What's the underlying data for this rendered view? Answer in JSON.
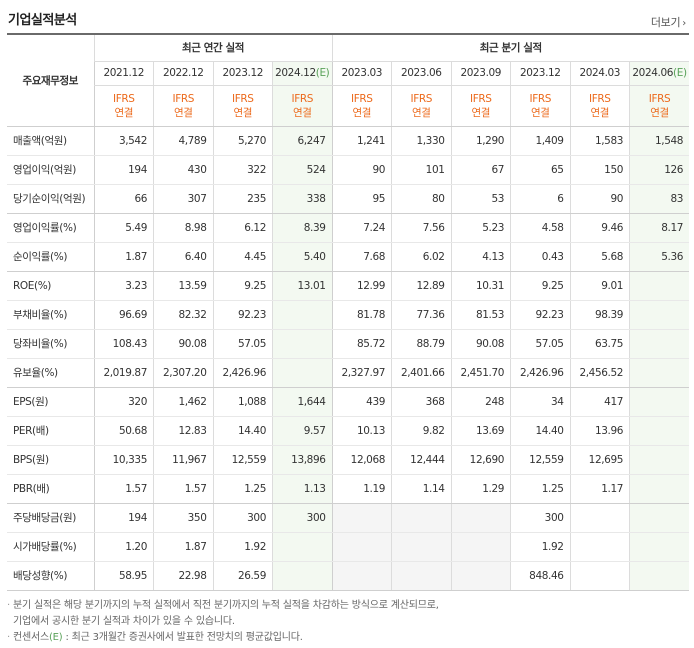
{
  "title": "기업실적분석",
  "more_label": "더보기",
  "header": {
    "row_label": "주요재무정보",
    "annual_group": "최근 연간 실적",
    "quarter_group": "최근 분기 실적",
    "annual_periods": [
      "2021.12",
      "2022.12",
      "2023.12",
      "2024.12"
    ],
    "annual_est_suffix": "(E)",
    "quarter_periods": [
      "2023.03",
      "2023.06",
      "2023.09",
      "2023.12",
      "2024.03",
      "2024.06"
    ],
    "quarter_est_suffix": "(E)",
    "basis_top": "IFRS",
    "basis_bottom": "연결"
  },
  "rows": [
    {
      "label": "매출액(억원)",
      "values": [
        "3,542",
        "4,789",
        "5,270",
        "6,247",
        "1,241",
        "1,330",
        "1,290",
        "1,409",
        "1,583",
        "1,548"
      ]
    },
    {
      "label": "영업이익(억원)",
      "values": [
        "194",
        "430",
        "322",
        "524",
        "90",
        "101",
        "67",
        "65",
        "150",
        "126"
      ]
    },
    {
      "label": "당기순이익(억원)",
      "values": [
        "66",
        "307",
        "235",
        "338",
        "95",
        "80",
        "53",
        "6",
        "90",
        "83"
      ]
    },
    {
      "label": "영업이익률(%)",
      "values": [
        "5.49",
        "8.98",
        "6.12",
        "8.39",
        "7.24",
        "7.56",
        "5.23",
        "4.58",
        "9.46",
        "8.17"
      ]
    },
    {
      "label": "순이익률(%)",
      "values": [
        "1.87",
        "6.40",
        "4.45",
        "5.40",
        "7.68",
        "6.02",
        "4.13",
        "0.43",
        "5.68",
        "5.36"
      ]
    },
    {
      "label": "ROE(%)",
      "values": [
        "3.23",
        "13.59",
        "9.25",
        "13.01",
        "12.99",
        "12.89",
        "10.31",
        "9.25",
        "9.01",
        ""
      ]
    },
    {
      "label": "부채비율(%)",
      "values": [
        "96.69",
        "82.32",
        "92.23",
        "",
        "81.78",
        "77.36",
        "81.53",
        "92.23",
        "98.39",
        ""
      ]
    },
    {
      "label": "당좌비율(%)",
      "values": [
        "108.43",
        "90.08",
        "57.05",
        "",
        "85.72",
        "88.79",
        "90.08",
        "57.05",
        "63.75",
        ""
      ]
    },
    {
      "label": "유보율(%)",
      "values": [
        "2,019.87",
        "2,307.20",
        "2,426.96",
        "",
        "2,327.97",
        "2,401.66",
        "2,451.70",
        "2,426.96",
        "2,456.52",
        ""
      ]
    },
    {
      "label": "EPS(원)",
      "values": [
        "320",
        "1,462",
        "1,088",
        "1,644",
        "439",
        "368",
        "248",
        "34",
        "417",
        ""
      ]
    },
    {
      "label": "PER(배)",
      "values": [
        "50.68",
        "12.83",
        "14.40",
        "9.57",
        "10.13",
        "9.82",
        "13.69",
        "14.40",
        "13.96",
        ""
      ]
    },
    {
      "label": "BPS(원)",
      "values": [
        "10,335",
        "11,967",
        "12,559",
        "13,896",
        "12,068",
        "12,444",
        "12,690",
        "12,559",
        "12,695",
        ""
      ]
    },
    {
      "label": "PBR(배)",
      "values": [
        "1.57",
        "1.57",
        "1.25",
        "1.13",
        "1.19",
        "1.14",
        "1.29",
        "1.25",
        "1.17",
        ""
      ]
    },
    {
      "label": "주당배당금(원)",
      "values": [
        "194",
        "350",
        "300",
        "300",
        "",
        "",
        "",
        "300",
        "",
        ""
      ]
    },
    {
      "label": "시가배당률(%)",
      "values": [
        "1.20",
        "1.87",
        "1.92",
        "",
        "",
        "",
        "",
        "1.92",
        "",
        ""
      ]
    },
    {
      "label": "배당성향(%)",
      "values": [
        "58.95",
        "22.98",
        "26.59",
        "",
        "",
        "",
        "",
        "848.46",
        "",
        ""
      ]
    }
  ],
  "notes": {
    "line1": "분기 실적은 해당 분기까지의 누적 실적에서 직전 분기까지의 누적 실적을 차감하는 방식으로 계산되므로,",
    "line2": "기업에서 공시한 분기 실적과 차이가 있을 수 있습니다.",
    "line3_prefix": "컨센서스",
    "line3_e": "(E)",
    "line3_rest": ": 최근 3개월간 증권사에서 발표한 전망치의 평균값입니다."
  },
  "colors": {
    "accent_orange": "#ec6a1c",
    "estimate_green": "#5aa25a",
    "estimate_bg": "#f3f9f1",
    "empty_gray_bg": "#f5f5f5"
  }
}
